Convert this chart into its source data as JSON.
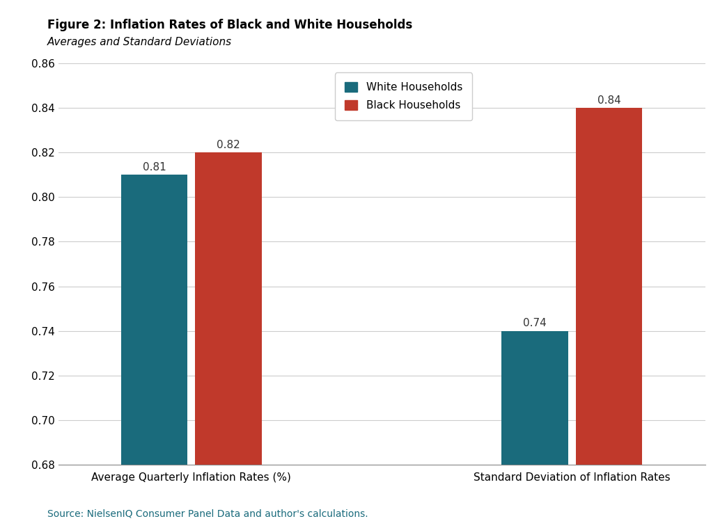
{
  "title": "Figure 2: Inflation Rates of Black and White Households",
  "subtitle": "Averages and Standard Deviations",
  "categories": [
    "Average Quarterly Inflation Rates (%)",
    "Standard Deviation of Inflation Rates"
  ],
  "white_values": [
    0.81,
    0.74
  ],
  "black_values": [
    0.82,
    0.84
  ],
  "white_color": "#1a6b7c",
  "black_color": "#c0392b",
  "ylim": [
    0.68,
    0.86
  ],
  "yticks": [
    0.68,
    0.7,
    0.72,
    0.74,
    0.76,
    0.78,
    0.8,
    0.82,
    0.84,
    0.86
  ],
  "legend_white": "White Households",
  "legend_black": "Black Households",
  "source_text": "Source: NielsenIQ Consumer Panel Data and author's calculations.",
  "source_color": "#1a6b7c",
  "bar_width": 0.35,
  "background_color": "#ffffff",
  "title_fontsize": 12,
  "subtitle_fontsize": 11,
  "tick_fontsize": 11,
  "label_fontsize": 11,
  "annotation_fontsize": 11,
  "legend_fontsize": 11,
  "source_fontsize": 10
}
